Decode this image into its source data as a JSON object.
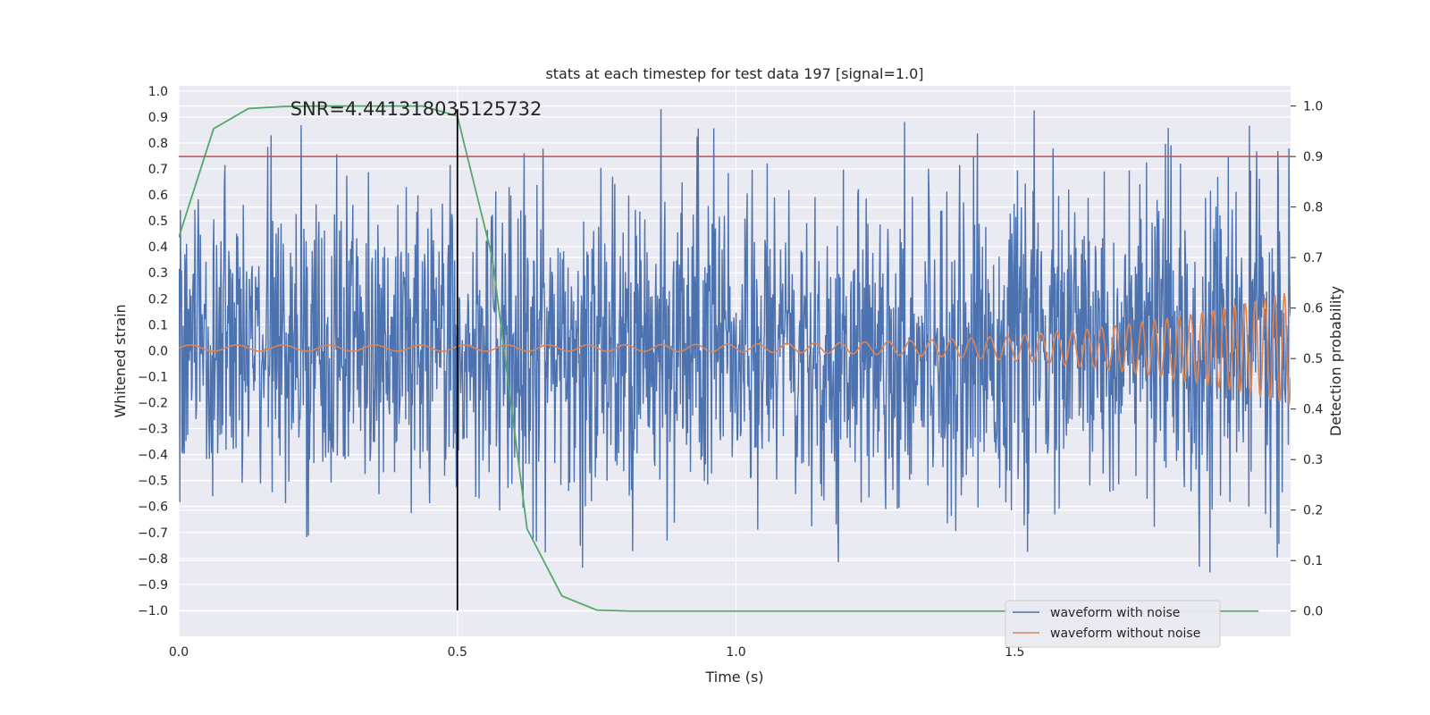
{
  "chart_data": {
    "type": "line",
    "title": "stats at each timestep for test data 197 [signal=1.0]",
    "xlabel": "Time (s)",
    "ylabel": "Whitened strain",
    "ylabel_right": "Detection probability",
    "xlim": [
      0.0,
      1.995
    ],
    "ylim": [
      -1.1,
      1.02
    ],
    "ylim_right": [
      -0.05,
      1.04
    ],
    "x_ticks": [
      0.0,
      0.5,
      1.0,
      1.5
    ],
    "x_tick_labels": [
      "0.0",
      "0.5",
      "1.0",
      "1.5"
    ],
    "y_ticks": [
      1.0,
      0.9,
      0.8,
      0.7,
      0.6,
      0.5,
      0.4,
      0.3,
      0.2,
      0.1,
      0.0,
      -0.1,
      -0.2,
      -0.3,
      -0.4,
      -0.5,
      -0.6,
      -0.7,
      -0.8,
      -0.9,
      -1.0
    ],
    "y_tick_labels": [
      "1.0",
      "0.9",
      "0.8",
      "0.7",
      "0.6",
      "0.5",
      "0.4",
      "0.3",
      "0.2",
      "0.1",
      "0.0",
      "−0.1",
      "−0.2",
      "−0.3",
      "−0.4",
      "−0.5",
      "−0.6",
      "−0.7",
      "−0.8",
      "−0.9",
      "−1.0"
    ],
    "y_right_ticks": [
      1.0,
      0.9,
      0.8,
      0.7,
      0.6,
      0.5,
      0.4,
      0.3,
      0.2,
      0.1,
      0.0
    ],
    "y_right_tick_labels": [
      "1.0",
      "0.9",
      "0.8",
      "0.7",
      "0.6",
      "0.5",
      "0.4",
      "0.3",
      "0.2",
      "0.1",
      "0.0"
    ],
    "grid": true,
    "legend_position": "lower-right",
    "series": [
      {
        "name": "waveform with noise",
        "color": "#4c72b0",
        "axis": "left",
        "kind": "noise",
        "samples": 2000,
        "x_range": [
          0.0,
          1.995
        ],
        "amplitude_std": 0.3
      },
      {
        "name": "waveform without noise",
        "color": "#dd8452",
        "axis": "left",
        "kind": "chirp",
        "x_range": [
          0.0,
          1.995
        ],
        "amplitude_start": 0.012,
        "amplitude_end": 0.22,
        "frequency_start_hz": 12,
        "frequency_end_hz": 60
      },
      {
        "color": "#55a868",
        "axis": "right",
        "x": [
          0.0,
          0.0625,
          0.125,
          0.1875,
          0.25,
          0.3125,
          0.375,
          0.4375,
          0.5,
          0.5625,
          0.625,
          0.6875,
          0.75,
          0.8125,
          0.875,
          0.9375,
          1.0,
          1.0625,
          1.125,
          1.1875,
          1.25,
          1.3125,
          1.375,
          1.4375,
          1.5,
          1.5625,
          1.625,
          1.6875,
          1.75,
          1.8125,
          1.875,
          1.9375
        ],
        "values": [
          0.74,
          0.955,
          0.995,
          0.999,
          1.0,
          1.0,
          1.0,
          1.0,
          0.98,
          0.7,
          0.163,
          0.03,
          0.002,
          0.0,
          0.0,
          0.0,
          0.0,
          0.0,
          0.0,
          0.0,
          0.0,
          0.0,
          0.0,
          0.0,
          0.0,
          0.0,
          0.0,
          0.0,
          0.0,
          0.0,
          0.0,
          0.0
        ]
      }
    ],
    "threshold_line": {
      "axis": "right",
      "y": 0.9,
      "color": "#c44e52"
    },
    "vertical_line": {
      "x": 0.5,
      "y_range": [
        -1.0,
        0.93
      ],
      "color": "#000000"
    },
    "annotation": {
      "text": "SNR=4.441318035125732",
      "x": 0.2,
      "y": 0.93
    }
  }
}
